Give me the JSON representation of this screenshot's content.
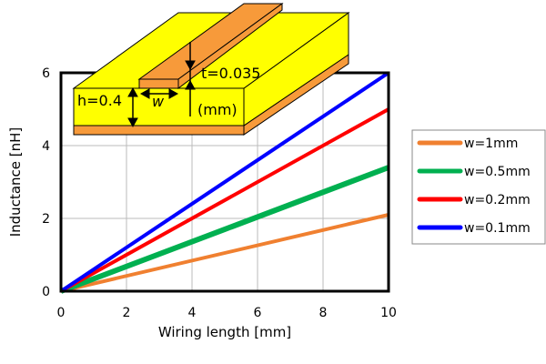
{
  "chart_data": {
    "type": "line",
    "xlabel": "Wiring length [mm]",
    "ylabel": "Inductance [nH]",
    "xlim": [
      0,
      10
    ],
    "ylim": [
      0,
      6
    ],
    "xticks": [
      0,
      2,
      4,
      6,
      8,
      10
    ],
    "yticks": [
      0,
      2,
      4,
      6
    ],
    "grid": true,
    "legend_position": "right",
    "series": [
      {
        "name": "w=1mm",
        "color": "#f08030",
        "x": [
          0,
          10
        ],
        "y": [
          0,
          2.1
        ]
      },
      {
        "name": "w=0.5mm",
        "color": "#00b050",
        "x": [
          0,
          10
        ],
        "y": [
          0,
          3.4
        ]
      },
      {
        "name": "w=0.2mm",
        "color": "#ff0000",
        "x": [
          0,
          10
        ],
        "y": [
          0,
          5.0
        ]
      },
      {
        "name": "w=0.1mm",
        "color": "#0000ff",
        "x": [
          0,
          10
        ],
        "y": [
          0,
          6.0
        ]
      }
    ]
  },
  "inset": {
    "h_label": "h=0.4",
    "w_label": "w",
    "t_label": "t=0.035",
    "unit_label": "(mm)",
    "board_color": "#ffff00",
    "copper_color": "#f79a3a"
  }
}
